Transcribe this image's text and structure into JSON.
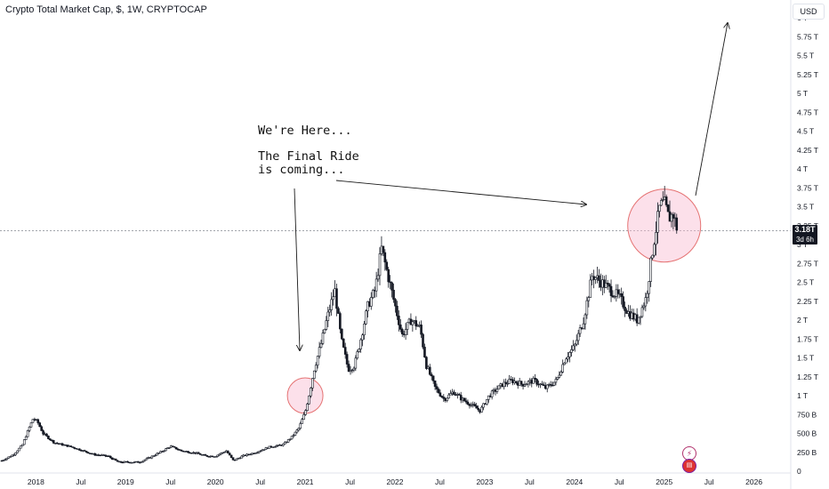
{
  "header": {
    "symbol_title": "Crypto Total Market Cap, $, 1W, CRYPTOCAP",
    "currency_button": "USD"
  },
  "annotations": {
    "line1": "We're Here...",
    "line2": "The Final Ride",
    "line3": "is coming..."
  },
  "price_tag": {
    "value": "3.18T",
    "countdown": "3d 6h"
  },
  "icons": {
    "flash": "lightning-icon",
    "flag": "us-flag-icon"
  },
  "colors": {
    "candle": "#131722",
    "circle_stroke": "#e57373",
    "circle_fill": "#f8bbd0",
    "arrow": "#1a1a1a",
    "price_line": "#6b6f7b"
  },
  "chart_data": {
    "type": "candlestick",
    "title": "Crypto Total Market Cap, $, 1W, CRYPTOCAP",
    "ylim": [
      0,
      6
    ],
    "y_tick_labels": [
      "0",
      "250 B",
      "500 B",
      "750 B",
      "1 T",
      "1.25 T",
      "1.5 T",
      "1.75 T",
      "2 T",
      "2.25 T",
      "2.5 T",
      "2.75 T",
      "3 T",
      "3.25 T",
      "3.5 T",
      "3.75 T",
      "4 T",
      "4.25 T",
      "4.5 T",
      "4.75 T",
      "5 T",
      "5.25 T",
      "5.5 T",
      "5.75 T",
      "6 T"
    ],
    "y_tick_values": [
      0,
      0.25,
      0.5,
      0.75,
      1,
      1.25,
      1.5,
      1.75,
      2,
      2.25,
      2.5,
      2.75,
      3,
      3.25,
      3.5,
      3.75,
      4,
      4.25,
      4.5,
      4.75,
      5,
      5.25,
      5.5,
      5.75,
      6
    ],
    "x_tick_labels": [
      "2018",
      "Jul",
      "2019",
      "Jul",
      "2020",
      "Jul",
      "2021",
      "Jul",
      "2022",
      "Jul",
      "2023",
      "Jul",
      "2024",
      "Jul",
      "2025",
      "Jul",
      "2026"
    ],
    "x_tick_values": [
      2018.0,
      2018.5,
      2019.0,
      2019.5,
      2020.0,
      2020.5,
      2021.0,
      2021.5,
      2022.0,
      2022.5,
      2023.0,
      2023.5,
      2024.0,
      2024.5,
      2025.0,
      2025.5,
      2026.0
    ],
    "x_range": [
      2017.6,
      2026.4
    ],
    "last_price": 3.18,
    "trend_points": [
      [
        2017.62,
        0.14
      ],
      [
        2017.75,
        0.22
      ],
      [
        2017.85,
        0.35
      ],
      [
        2017.92,
        0.56
      ],
      [
        2017.97,
        0.7
      ],
      [
        2018.02,
        0.65
      ],
      [
        2018.08,
        0.5
      ],
      [
        2018.2,
        0.38
      ],
      [
        2018.3,
        0.35
      ],
      [
        2018.4,
        0.32
      ],
      [
        2018.5,
        0.28
      ],
      [
        2018.65,
        0.22
      ],
      [
        2018.8,
        0.2
      ],
      [
        2018.92,
        0.12
      ],
      [
        2019.0,
        0.12
      ],
      [
        2019.15,
        0.12
      ],
      [
        2019.25,
        0.17
      ],
      [
        2019.4,
        0.26
      ],
      [
        2019.5,
        0.33
      ],
      [
        2019.62,
        0.27
      ],
      [
        2019.78,
        0.24
      ],
      [
        2019.9,
        0.2
      ],
      [
        2020.0,
        0.2
      ],
      [
        2020.12,
        0.27
      ],
      [
        2020.2,
        0.14
      ],
      [
        2020.3,
        0.2
      ],
      [
        2020.45,
        0.25
      ],
      [
        2020.6,
        0.32
      ],
      [
        2020.75,
        0.35
      ],
      [
        2020.85,
        0.45
      ],
      [
        2020.93,
        0.57
      ],
      [
        2021.0,
        0.78
      ],
      [
        2021.05,
        1.05
      ],
      [
        2021.1,
        1.35
      ],
      [
        2021.18,
        1.7
      ],
      [
        2021.25,
        2.05
      ],
      [
        2021.33,
        2.4
      ],
      [
        2021.4,
        1.75
      ],
      [
        2021.48,
        1.35
      ],
      [
        2021.55,
        1.4
      ],
      [
        2021.62,
        1.75
      ],
      [
        2021.7,
        2.2
      ],
      [
        2021.78,
        2.4
      ],
      [
        2021.85,
        2.95
      ],
      [
        2021.92,
        2.6
      ],
      [
        2022.0,
        2.2
      ],
      [
        2022.08,
        1.8
      ],
      [
        2022.18,
        2.0
      ],
      [
        2022.28,
        1.9
      ],
      [
        2022.35,
        1.4
      ],
      [
        2022.45,
        1.1
      ],
      [
        2022.55,
        0.95
      ],
      [
        2022.65,
        1.05
      ],
      [
        2022.75,
        0.95
      ],
      [
        2022.85,
        0.88
      ],
      [
        2022.95,
        0.8
      ],
      [
        2023.05,
        1.0
      ],
      [
        2023.2,
        1.15
      ],
      [
        2023.3,
        1.2
      ],
      [
        2023.42,
        1.15
      ],
      [
        2023.55,
        1.2
      ],
      [
        2023.68,
        1.1
      ],
      [
        2023.8,
        1.2
      ],
      [
        2023.9,
        1.5
      ],
      [
        2024.0,
        1.65
      ],
      [
        2024.1,
        2.0
      ],
      [
        2024.2,
        2.6
      ],
      [
        2024.3,
        2.5
      ],
      [
        2024.4,
        2.4
      ],
      [
        2024.5,
        2.3
      ],
      [
        2024.6,
        2.1
      ],
      [
        2024.7,
        2.0
      ],
      [
        2024.8,
        2.3
      ],
      [
        2024.88,
        3.0
      ],
      [
        2024.95,
        3.5
      ],
      [
        2025.0,
        3.55
      ],
      [
        2025.05,
        3.35
      ],
      [
        2025.1,
        3.4
      ],
      [
        2025.15,
        3.18
      ]
    ]
  }
}
